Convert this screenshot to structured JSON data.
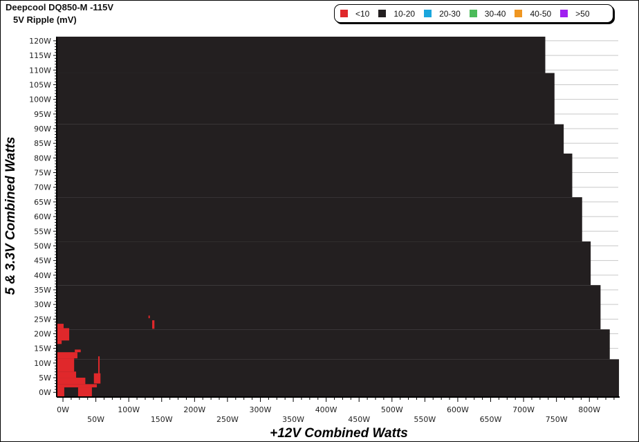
{
  "chart_data": {
    "type": "heatmap",
    "title": "Deepcool DQ850-M -115V",
    "subtitle": "5V Ripple (mV)",
    "xlabel": "+12V Combined Watts",
    "ylabel": "5 & 3.3V Combined Watts",
    "xlim": [
      -9.5,
      846
    ],
    "ylim": [
      -1.6,
      121.4
    ],
    "x_ticks": [
      0,
      50,
      100,
      150,
      200,
      250,
      300,
      350,
      400,
      450,
      500,
      550,
      600,
      650,
      700,
      750,
      800
    ],
    "x_tick_labels": [
      "0W",
      "50W",
      "100W",
      "150W",
      "200W",
      "250W",
      "300W",
      "350W",
      "400W",
      "450W",
      "500W",
      "550W",
      "600W",
      "650W",
      "700W",
      "750W",
      "800W"
    ],
    "y_ticks": [
      0,
      5,
      10,
      15,
      20,
      25,
      30,
      35,
      40,
      45,
      50,
      55,
      60,
      65,
      70,
      75,
      80,
      85,
      90,
      95,
      100,
      105,
      110,
      115,
      120
    ],
    "y_tick_labels": [
      "0W",
      "5W",
      "10W",
      "15W",
      "20W",
      "25W",
      "30W",
      "35W",
      "40W",
      "45W",
      "50W",
      "55W",
      "60W",
      "65W",
      "70W",
      "75W",
      "80W",
      "85W",
      "90W",
      "95W",
      "100W",
      "105W",
      "110W",
      "115W",
      "120W"
    ],
    "grid": "horizontal",
    "legend": {
      "placement": "top-right",
      "entries": [
        {
          "label": "<10",
          "color": "#e0282b"
        },
        {
          "label": "10-20",
          "color": "#231f20"
        },
        {
          "label": "20-30",
          "color": "#1aa6dd"
        },
        {
          "label": "30-40",
          "color": "#4cbb5a"
        },
        {
          "label": "40-50",
          "color": "#ef9621"
        },
        {
          "label": ">50",
          "color": "#a020f0"
        }
      ]
    },
    "regions": {
      "10-20": [
        {
          "y": [
            -1.6,
            11.3
          ],
          "x_max": 845
        },
        {
          "y": [
            11.3,
            21.5
          ],
          "x_max": 831
        },
        {
          "y": [
            21.5,
            36.6
          ],
          "x_max": 817
        },
        {
          "y": [
            36.6,
            51.5
          ],
          "x_max": 802
        },
        {
          "y": [
            51.5,
            66.6
          ],
          "x_max": 789
        },
        {
          "y": [
            66.6,
            81.5
          ],
          "x_max": 774
        },
        {
          "y": [
            81.5,
            91.5
          ],
          "x_max": 761
        },
        {
          "y": [
            91.5,
            109
          ],
          "x_max": 747
        },
        {
          "y": [
            109,
            121.4
          ],
          "x_max": 733
        }
      ],
      "<10": [
        {
          "x": [
            -9.5,
            1
          ],
          "y": [
            21.9,
            23.4
          ]
        },
        {
          "x": [
            -9.5,
            9.5
          ],
          "y": [
            17.7,
            21.9
          ]
        },
        {
          "x": [
            -9.5,
            -2
          ],
          "y": [
            16.5,
            17.7
          ]
        },
        {
          "x": [
            18,
            27
          ],
          "y": [
            13.7,
            14.6
          ]
        },
        {
          "x": [
            -9.5,
            22
          ],
          "y": [
            11.6,
            13.7
          ]
        },
        {
          "x": [
            -9.5,
            17
          ],
          "y": [
            7.1,
            11.6
          ]
        },
        {
          "x": [
            -9.5,
            20
          ],
          "y": [
            5,
            7.1
          ]
        },
        {
          "x": [
            -9.5,
            34
          ],
          "y": [
            2.8,
            5
          ]
        },
        {
          "x": [
            47,
            57
          ],
          "y": [
            3,
            6.5
          ]
        },
        {
          "x": [
            -9.5,
            51.5
          ],
          "y": [
            1.7,
            2.8
          ]
        },
        {
          "x": [
            -9.5,
            2
          ],
          "y": [
            -1.6,
            1.7
          ]
        },
        {
          "x": [
            23,
            44
          ],
          "y": [
            -1.6,
            1.7
          ]
        },
        {
          "x": [
            53.6,
            55.7
          ],
          "y": [
            6.4,
            12.3
          ]
        },
        {
          "x": [
            130,
            132
          ],
          "y": [
            25.3,
            26.2
          ]
        },
        {
          "x": [
            135.6,
            139
          ],
          "y": [
            21.7,
            24.6
          ]
        }
      ]
    }
  }
}
